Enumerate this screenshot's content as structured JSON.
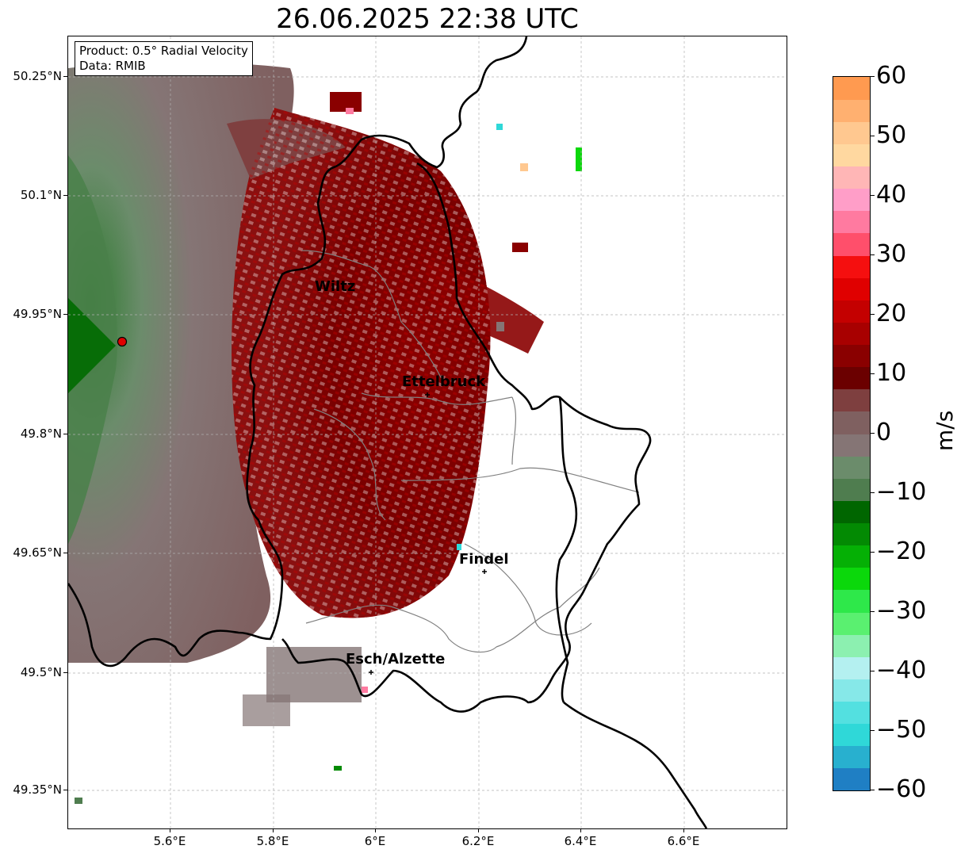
{
  "title": "26.06.2025 22:38 UTC",
  "info_box": {
    "product": "Product: 0.5° Radial Velocity",
    "data": "Data: RMIB"
  },
  "map": {
    "lon_range": [
      5.4,
      6.8
    ],
    "lat_range": [
      49.3,
      50.3
    ],
    "radar_site": {
      "lon": 5.505,
      "lat": 49.915
    },
    "lat_ticks": [
      {
        "value": 50.25,
        "label": "50.25°N"
      },
      {
        "value": 50.1,
        "label": "50.1°N"
      },
      {
        "value": 49.95,
        "label": "49.95°N"
      },
      {
        "value": 49.8,
        "label": "49.8°N"
      },
      {
        "value": 49.65,
        "label": "49.65°N"
      },
      {
        "value": 49.5,
        "label": "49.5°N"
      },
      {
        "value": 49.35,
        "label": "49.35°N"
      }
    ],
    "lon_ticks": [
      {
        "value": 5.6,
        "label": "5.6°E"
      },
      {
        "value": 5.8,
        "label": "5.8°E"
      },
      {
        "value": 6.0,
        "label": "6°E"
      },
      {
        "value": 6.2,
        "label": "6.2°E"
      },
      {
        "value": 6.4,
        "label": "6.4°E"
      },
      {
        "value": 6.6,
        "label": "6.6°E"
      }
    ],
    "cities": [
      {
        "name": "Wiltz",
        "lon": 5.95,
        "lat": 49.97
      },
      {
        "name": "Ettelbruck",
        "lon": 6.1,
        "lat": 49.85
      },
      {
        "name": "Findel",
        "lon": 6.21,
        "lat": 49.63
      },
      {
        "name": "Esch/Alzette",
        "lon": 5.99,
        "lat": 49.5
      }
    ],
    "grid": true
  },
  "colorbar": {
    "unit": "m/s",
    "min": -60,
    "max": 60,
    "ticks": [
      {
        "value": 60,
        "label": "60"
      },
      {
        "value": 50,
        "label": "50"
      },
      {
        "value": 40,
        "label": "40"
      },
      {
        "value": 30,
        "label": "30"
      },
      {
        "value": 20,
        "label": "20"
      },
      {
        "value": 10,
        "label": "10"
      },
      {
        "value": 0,
        "label": "0"
      },
      {
        "value": -10,
        "label": "−10"
      },
      {
        "value": -20,
        "label": "−20"
      },
      {
        "value": -30,
        "label": "−30"
      },
      {
        "value": -40,
        "label": "−40"
      },
      {
        "value": -50,
        "label": "−50"
      },
      {
        "value": -60,
        "label": "−60"
      }
    ],
    "colors": [
      "#1f7fc4",
      "#28b0cf",
      "#2fd8d8",
      "#53e0e0",
      "#86e8e8",
      "#b4f0f0",
      "#8cf0b0",
      "#5af070",
      "#2ee84a",
      "#0bd80b",
      "#05b005",
      "#038a03",
      "#006600",
      "#4f7d4f",
      "#6b8c6b",
      "#857575",
      "#7f6060",
      "#7e3f3f",
      "#6b0000",
      "#8a0000",
      "#a80000",
      "#c40000",
      "#e00000",
      "#f50f0f",
      "#ff4f6b",
      "#ff7aa0",
      "#ff9ec8",
      "#ffb6b6",
      "#ffd8a0",
      "#ffc890",
      "#ffb070",
      "#ff9a50"
    ]
  }
}
